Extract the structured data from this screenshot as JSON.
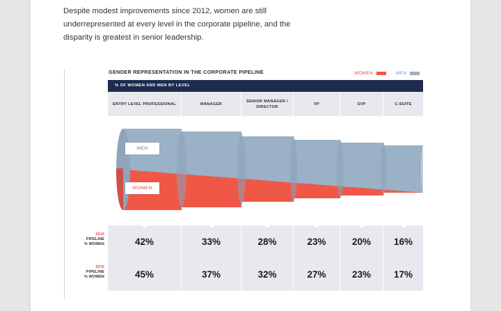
{
  "intro_text": "Despite modest improvements since 2012, women are still underrepresented at every level in the corporate pipeline, and the disparity is greatest in senior leadership.",
  "chart_title": "GENDER REPRESENTATION IN THE CORPORATE PIPELINE",
  "legend": {
    "women_label": "WOMEN",
    "men_label": "MEN"
  },
  "colors": {
    "women": "#ef5847",
    "men": "#9ab1c6",
    "header_bg": "#1e2b4d"
  },
  "subheader": "% OF WOMEN AND MEN BY LEVEL",
  "pipe_labels": {
    "men": "MEN",
    "women": "WOMEN"
  },
  "chart_data": {
    "type": "table",
    "categories": [
      "ENTRY LEVEL PROFESSIONAL",
      "MANAGER",
      "SENIOR MANAGER / DIRECTOR",
      "VP",
      "SVP",
      "C-SUITE"
    ],
    "series": [
      {
        "name": "2012 PIPELINE % WOMEN",
        "values": [
          "42%",
          "33%",
          "28%",
          "23%",
          "20%",
          "16%"
        ]
      },
      {
        "name": "2015 PIPELINE % WOMEN",
        "values": [
          "45%",
          "37%",
          "32%",
          "27%",
          "23%",
          "17%"
        ]
      }
    ]
  },
  "rows": [
    {
      "year": "2012",
      "label1": "PIPELINE",
      "label2": "% WOMEN"
    },
    {
      "year": "2015",
      "label1": "PIPELINE",
      "label2": "% WOMEN"
    }
  ]
}
